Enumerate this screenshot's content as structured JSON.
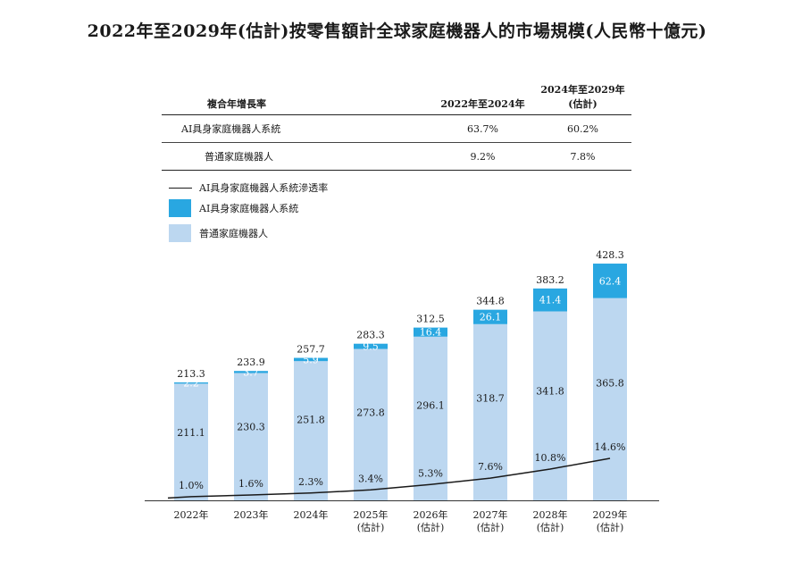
{
  "title": "2022年至2029年(估計)按零售額計全球家庭機器人的市場規模(人民幣十億元)",
  "cagr_table": {
    "header": {
      "label": "複合年增長率",
      "col_a": "2022年至2024年",
      "col_b_line1": "2024年至2029年",
      "col_b_line2": "(估計)"
    },
    "rows": [
      {
        "label": "AI具身家庭機器人系統",
        "col_a": "63.7%",
        "col_b": "60.2%"
      },
      {
        "label": "普通家庭機器人",
        "col_a": "9.2%",
        "col_b": "7.8%"
      }
    ]
  },
  "legend": {
    "line": "AI具身家庭機器人系統滲透率",
    "ai_series": "AI具身家庭機器人系統",
    "ordinary_series": "普通家庭機器人"
  },
  "colors": {
    "ai": "#29a7e1",
    "ordinary": "#bcd7f0",
    "line": "#1a1a1a"
  },
  "chart_data": {
    "type": "bar",
    "stacked": true,
    "categories": [
      {
        "year": "2022年",
        "note": ""
      },
      {
        "year": "2023年",
        "note": ""
      },
      {
        "year": "2024年",
        "note": ""
      },
      {
        "year": "2025年",
        "note": "(估計)"
      },
      {
        "year": "2026年",
        "note": "(估計)"
      },
      {
        "year": "2027年",
        "note": "(估計)"
      },
      {
        "year": "2028年",
        "note": "(估計)"
      },
      {
        "year": "2029年",
        "note": "(估計)"
      }
    ],
    "series": [
      {
        "name": "普通家庭機器人",
        "values": [
          211.1,
          230.3,
          251.8,
          273.8,
          296.1,
          318.7,
          341.8,
          365.8
        ]
      },
      {
        "name": "AI具身家庭機器人系統",
        "values": [
          2.2,
          3.7,
          5.9,
          9.5,
          16.4,
          26.1,
          41.4,
          62.4
        ]
      }
    ],
    "totals": [
      213.3,
      233.9,
      257.7,
      283.3,
      312.5,
      344.8,
      383.2,
      428.3
    ],
    "line": {
      "name": "AI具身家庭機器人系統滲透率",
      "values": [
        1.0,
        1.6,
        2.3,
        3.4,
        5.3,
        7.6,
        10.8,
        14.6
      ],
      "labels": [
        "1.0%",
        "1.6%",
        "2.3%",
        "3.4%",
        "5.3%",
        "7.6%",
        "10.8%",
        "14.6%"
      ]
    }
  }
}
